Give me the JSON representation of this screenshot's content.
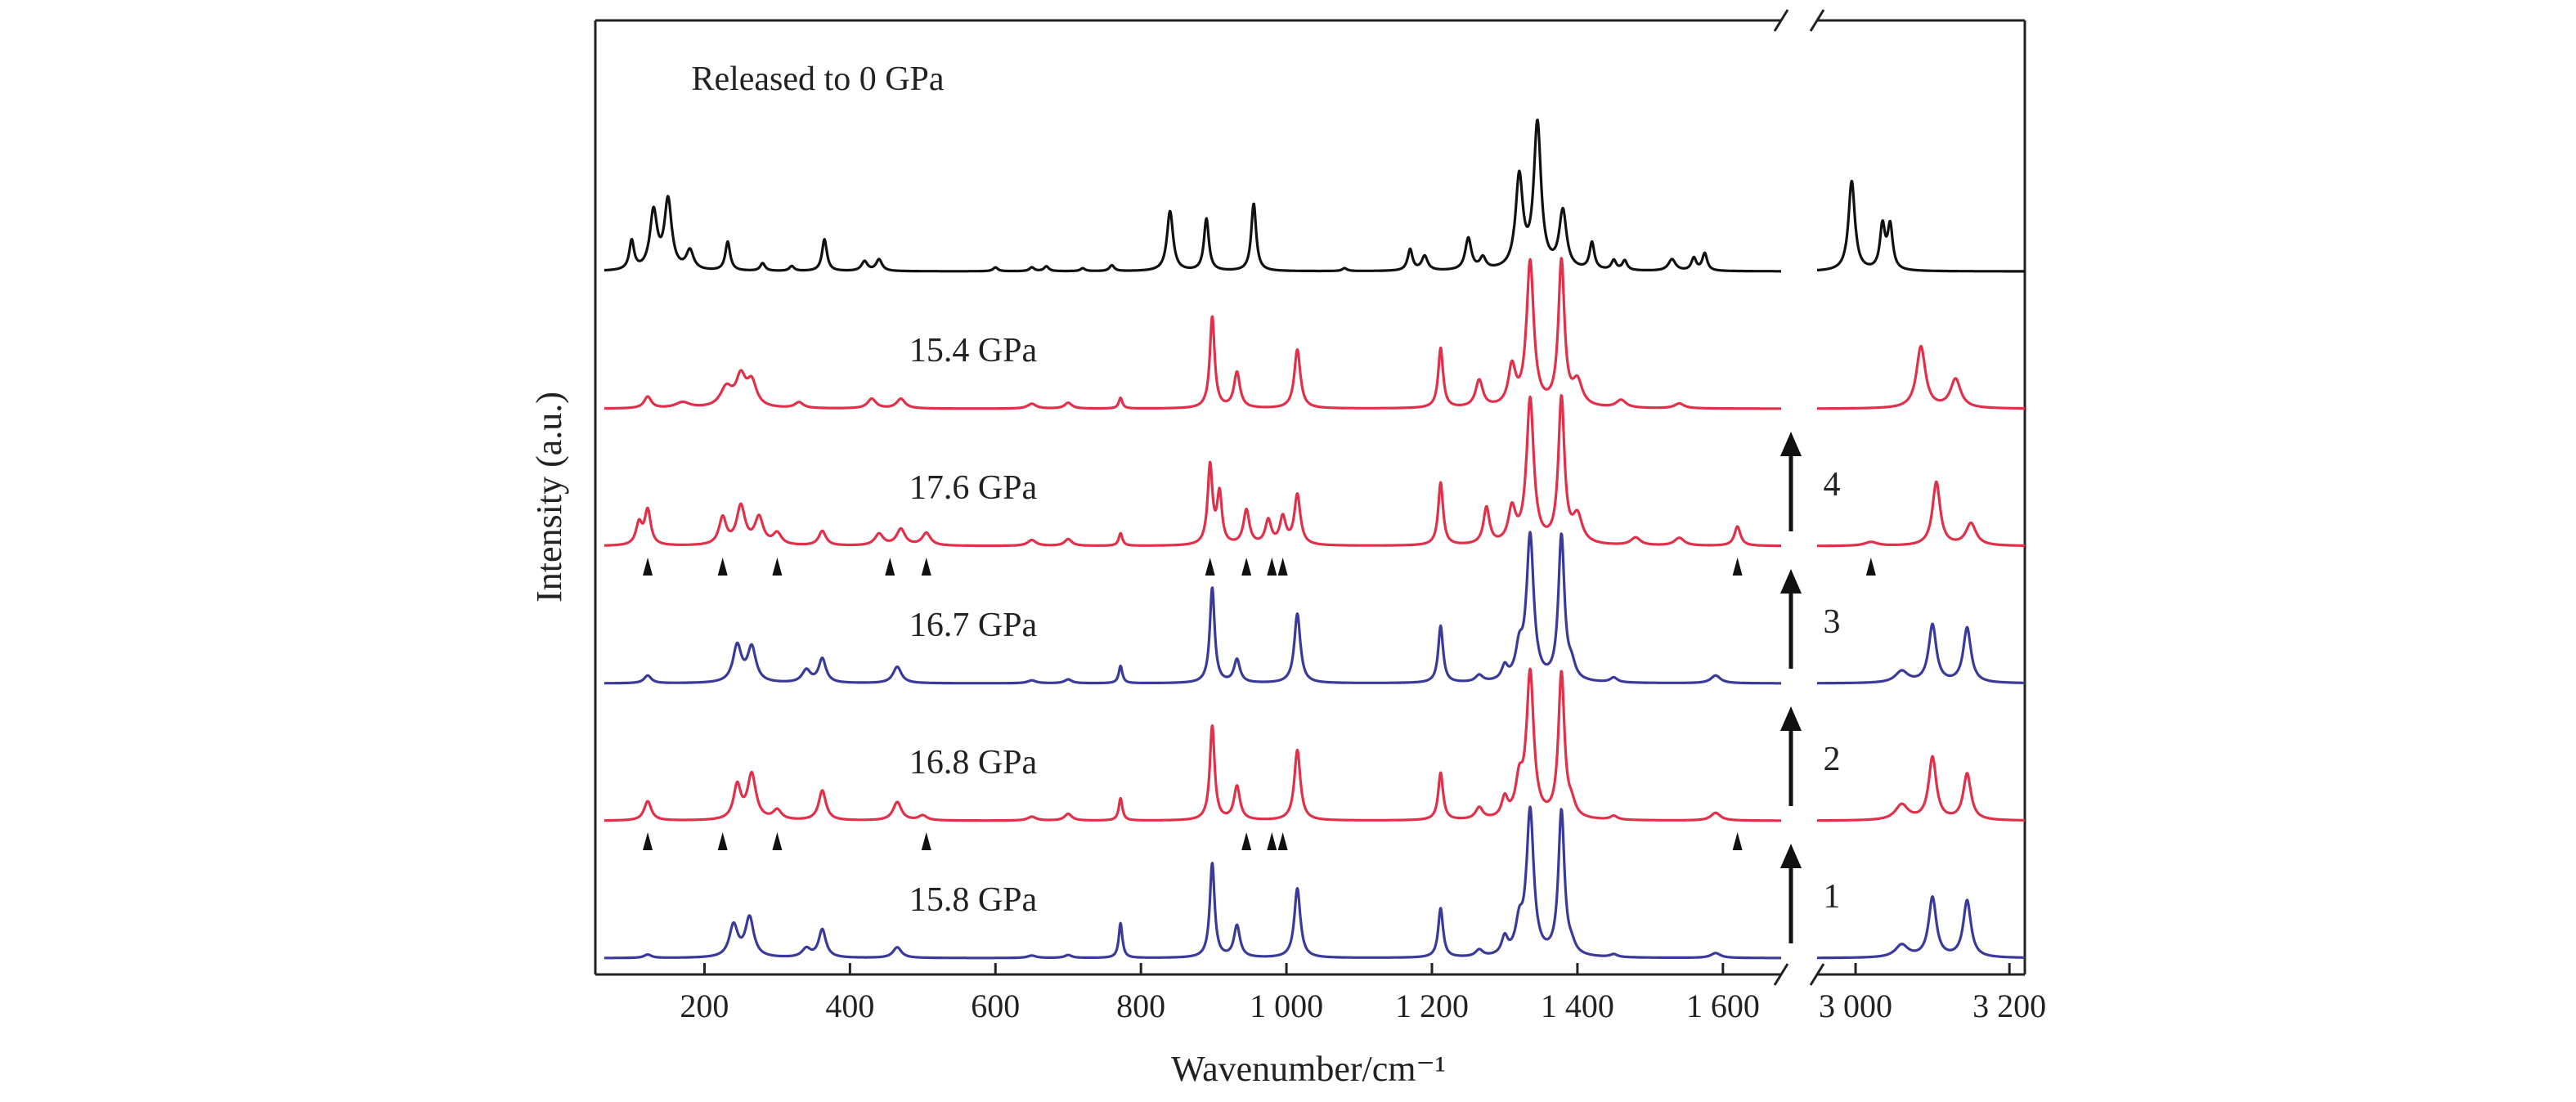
{
  "chart_data": {
    "type": "line",
    "xlabel": "Wavenumber/cm⁻¹",
    "ylabel": "Intensity (a.u.)",
    "x_axis_segments": [
      {
        "range": [
          50,
          1680
        ],
        "ticks": [
          200,
          400,
          600,
          800,
          1000,
          1200,
          1400,
          1600
        ],
        "tick_labels": [
          "200",
          "400",
          "600",
          "800",
          "1 000",
          "1 200",
          "1 400",
          "1 600"
        ]
      },
      {
        "range": [
          2950,
          3220
        ],
        "ticks": [
          3000,
          3200
        ],
        "tick_labels": [
          "3 000",
          "3 200"
        ]
      }
    ],
    "axis_break": true,
    "series": [
      {
        "name": "15.8 GPa",
        "color": "#3a3a9a",
        "baseline": 0.0,
        "peaks": [
          [
            122,
            0.035,
            6
          ],
          [
            240,
            0.33,
            7
          ],
          [
            262,
            0.41,
            7
          ],
          [
            340,
            0.09,
            7
          ],
          [
            362,
            0.29,
            6
          ],
          [
            465,
            0.11,
            7
          ],
          [
            650,
            0.025,
            7
          ],
          [
            700,
            0.03,
            6
          ],
          [
            772,
            0.36,
            3
          ],
          [
            898,
            0.98,
            4
          ],
          [
            932,
            0.33,
            5
          ],
          [
            1015,
            0.72,
            5
          ],
          [
            1212,
            0.51,
            4
          ],
          [
            1265,
            0.07,
            6
          ],
          [
            1300,
            0.18,
            5
          ],
          [
            1320,
            0.3,
            6
          ],
          [
            1335,
            1.5,
            6
          ],
          [
            1378,
            1.5,
            5
          ],
          [
            1392,
            0.08,
            6
          ],
          [
            1450,
            0.03,
            6
          ],
          [
            1590,
            0.05,
            8
          ],
          [
            3060,
            0.13,
            10
          ],
          [
            3100,
            0.62,
            6
          ],
          [
            3145,
            0.59,
            6
          ]
        ]
      },
      {
        "name": "16.8 GPa",
        "color": "#e0304a",
        "baseline": 1.0,
        "peaks": [
          [
            122,
            0.2,
            6
          ],
          [
            245,
            0.35,
            6
          ],
          [
            265,
            0.47,
            7
          ],
          [
            300,
            0.1,
            7
          ],
          [
            362,
            0.31,
            6
          ],
          [
            465,
            0.19,
            7
          ],
          [
            500,
            0.05,
            7
          ],
          [
            650,
            0.04,
            7
          ],
          [
            700,
            0.07,
            6
          ],
          [
            772,
            0.23,
            3
          ],
          [
            898,
            0.98,
            4
          ],
          [
            932,
            0.35,
            5
          ],
          [
            1015,
            0.73,
            5
          ],
          [
            1212,
            0.49,
            4
          ],
          [
            1265,
            0.12,
            6
          ],
          [
            1300,
            0.2,
            5
          ],
          [
            1320,
            0.35,
            6
          ],
          [
            1335,
            1.5,
            6
          ],
          [
            1378,
            1.5,
            5
          ],
          [
            1392,
            0.12,
            6
          ],
          [
            1450,
            0.04,
            6
          ],
          [
            1590,
            0.08,
            8
          ],
          [
            3060,
            0.16,
            10
          ],
          [
            3100,
            0.65,
            6
          ],
          [
            3145,
            0.48,
            6
          ]
        ]
      },
      {
        "name": "16.7 GPa",
        "color": "#3a3a9a",
        "baseline": 2.0,
        "peaks": [
          [
            122,
            0.08,
            6
          ],
          [
            245,
            0.38,
            7
          ],
          [
            265,
            0.36,
            7
          ],
          [
            340,
            0.13,
            7
          ],
          [
            362,
            0.25,
            6
          ],
          [
            465,
            0.17,
            7
          ],
          [
            650,
            0.03,
            7
          ],
          [
            700,
            0.04,
            6
          ],
          [
            772,
            0.18,
            3
          ],
          [
            898,
            0.99,
            4
          ],
          [
            932,
            0.24,
            5
          ],
          [
            1015,
            0.72,
            5
          ],
          [
            1212,
            0.59,
            4
          ],
          [
            1265,
            0.07,
            6
          ],
          [
            1300,
            0.14,
            5
          ],
          [
            1320,
            0.3,
            6
          ],
          [
            1335,
            1.5,
            6
          ],
          [
            1378,
            1.5,
            5
          ],
          [
            1392,
            0.14,
            6
          ],
          [
            1450,
            0.05,
            6
          ],
          [
            1590,
            0.08,
            8
          ],
          [
            3060,
            0.12,
            10
          ],
          [
            3100,
            0.6,
            6
          ],
          [
            3145,
            0.57,
            6
          ]
        ]
      },
      {
        "name": "17.6 GPa",
        "color": "#e0304a",
        "baseline": 3.0,
        "peaks": [
          [
            110,
            0.22,
            5
          ],
          [
            122,
            0.36,
            5
          ],
          [
            225,
            0.28,
            6
          ],
          [
            250,
            0.4,
            7
          ],
          [
            275,
            0.28,
            7
          ],
          [
            300,
            0.12,
            7
          ],
          [
            362,
            0.15,
            6
          ],
          [
            440,
            0.12,
            7
          ],
          [
            470,
            0.17,
            7
          ],
          [
            505,
            0.13,
            7
          ],
          [
            650,
            0.06,
            7
          ],
          [
            700,
            0.07,
            6
          ],
          [
            772,
            0.13,
            3
          ],
          [
            895,
            0.82,
            4
          ],
          [
            908,
            0.52,
            4
          ],
          [
            945,
            0.36,
            5
          ],
          [
            975,
            0.25,
            5
          ],
          [
            995,
            0.28,
            5
          ],
          [
            1015,
            0.52,
            5
          ],
          [
            1212,
            0.65,
            4
          ],
          [
            1275,
            0.38,
            5
          ],
          [
            1310,
            0.35,
            6
          ],
          [
            1335,
            1.5,
            6
          ],
          [
            1378,
            1.5,
            5
          ],
          [
            1400,
            0.28,
            8
          ],
          [
            1480,
            0.08,
            8
          ],
          [
            1540,
            0.08,
            8
          ],
          [
            1620,
            0.2,
            5
          ],
          [
            3020,
            0.04,
            10
          ],
          [
            3105,
            0.66,
            6
          ],
          [
            3150,
            0.23,
            8
          ]
        ]
      },
      {
        "name": "15.4 GPa",
        "color": "#e0304a",
        "baseline": 4.0,
        "peaks": [
          [
            122,
            0.12,
            6
          ],
          [
            170,
            0.06,
            12
          ],
          [
            230,
            0.2,
            10
          ],
          [
            250,
            0.3,
            8
          ],
          [
            265,
            0.25,
            8
          ],
          [
            330,
            0.06,
            7
          ],
          [
            430,
            0.1,
            7
          ],
          [
            470,
            0.1,
            7
          ],
          [
            650,
            0.05,
            7
          ],
          [
            700,
            0.06,
            6
          ],
          [
            772,
            0.11,
            3
          ],
          [
            898,
            0.95,
            4
          ],
          [
            932,
            0.37,
            5
          ],
          [
            1015,
            0.61,
            5
          ],
          [
            1212,
            0.62,
            4
          ],
          [
            1265,
            0.28,
            6
          ],
          [
            1310,
            0.4,
            6
          ],
          [
            1335,
            1.5,
            6
          ],
          [
            1378,
            1.5,
            5
          ],
          [
            1400,
            0.25,
            8
          ],
          [
            1460,
            0.08,
            8
          ],
          [
            1540,
            0.05,
            8
          ],
          [
            3085,
            0.64,
            7
          ],
          [
            3130,
            0.3,
            8
          ]
        ]
      },
      {
        "name": "Released to 0 GPa",
        "color": "#111111",
        "baseline": 5.0,
        "peaks": [
          [
            100,
            0.3,
            4
          ],
          [
            130,
            0.6,
            6
          ],
          [
            150,
            0.72,
            6
          ],
          [
            180,
            0.2,
            6
          ],
          [
            232,
            0.3,
            4
          ],
          [
            280,
            0.08,
            4
          ],
          [
            320,
            0.05,
            4
          ],
          [
            365,
            0.33,
            4
          ],
          [
            420,
            0.1,
            5
          ],
          [
            440,
            0.12,
            5
          ],
          [
            600,
            0.04,
            4
          ],
          [
            650,
            0.04,
            4
          ],
          [
            670,
            0.05,
            4
          ],
          [
            720,
            0.03,
            4
          ],
          [
            760,
            0.06,
            4
          ],
          [
            840,
            0.62,
            5
          ],
          [
            890,
            0.54,
            4
          ],
          [
            955,
            0.7,
            4
          ],
          [
            1080,
            0.03,
            4
          ],
          [
            1170,
            0.22,
            4
          ],
          [
            1190,
            0.15,
            5
          ],
          [
            1250,
            0.33,
            5
          ],
          [
            1270,
            0.12,
            5
          ],
          [
            1320,
            0.95,
            6
          ],
          [
            1345,
            1.5,
            6
          ],
          [
            1380,
            0.6,
            6
          ],
          [
            1420,
            0.28,
            4
          ],
          [
            1450,
            0.1,
            4
          ],
          [
            1465,
            0.1,
            4
          ],
          [
            1530,
            0.12,
            6
          ],
          [
            1560,
            0.13,
            4
          ],
          [
            1575,
            0.18,
            4
          ],
          [
            2995,
            0.93,
            5
          ],
          [
            3035,
            0.45,
            4
          ],
          [
            3045,
            0.45,
            4
          ]
        ]
      }
    ],
    "arrow_steps": [
      "1",
      "2",
      "3",
      "4"
    ],
    "markers": {
      "16.8 GPa": [
        122,
        225,
        300,
        505,
        945,
        980,
        995,
        1620
      ],
      "17.6 GPa": [
        122,
        225,
        300,
        455,
        505,
        895,
        945,
        980,
        995,
        1620,
        3020
      ]
    },
    "grid": false,
    "legend": "none (series labelled above each trace)"
  }
}
